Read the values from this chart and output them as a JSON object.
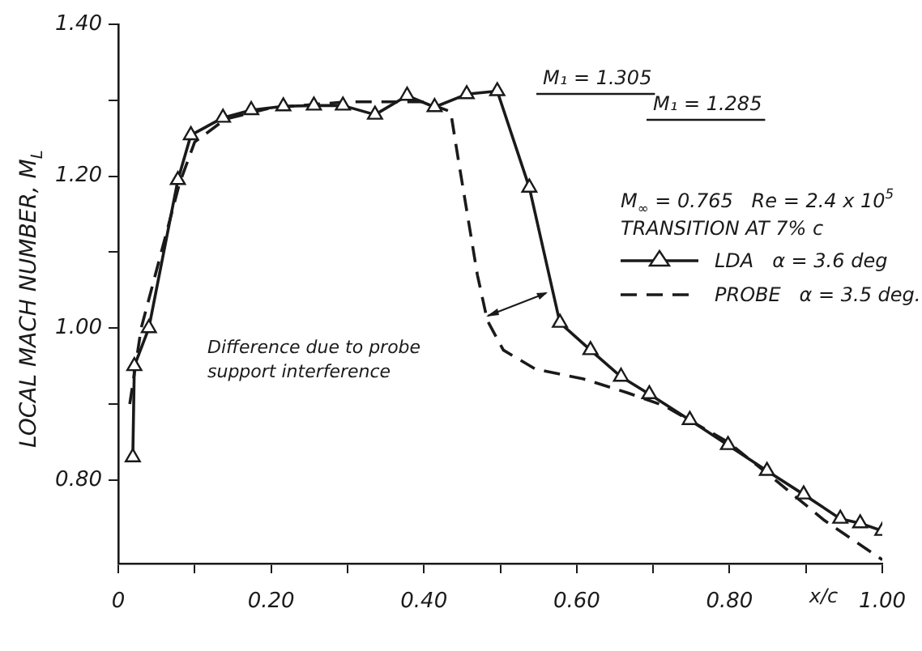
{
  "chart_data": {
    "type": "line",
    "ylabel": "LOCAL MACH NUMBER, M$_{L}$",
    "xlabel": "x/c",
    "xlim": [
      0,
      1
    ],
    "ylim": [
      0.69,
      1.4
    ],
    "xticks": [
      0,
      {
        "value": 0.1,
        "label": null
      },
      {
        "value": 0.2,
        "label": "0.20"
      },
      {
        "value": 0.3,
        "label": null
      },
      {
        "value": 0.4,
        "label": "0.40"
      },
      {
        "value": 0.5,
        "label": null
      },
      {
        "value": 0.6,
        "label": "0.60"
      },
      {
        "value": 0.7,
        "label": null
      },
      {
        "value": 0.8,
        "label": "0.80"
      },
      {
        "value": 0.9,
        "label": null
      },
      {
        "value": 1,
        "label": "1.00"
      }
    ],
    "yticks": [
      {
        "value": 0.8,
        "label": "0.80"
      },
      {
        "value": 0.9,
        "label": null
      },
      {
        "value": 1,
        "label": "1.00"
      },
      {
        "value": 1.1,
        "label": null
      },
      {
        "value": 1.2,
        "label": "1.20"
      },
      {
        "value": 1.3,
        "label": null
      },
      {
        "value": 1.4,
        "label": "1.40"
      }
    ],
    "legend": "right",
    "series": [
      {
        "name": "LDA   α = 3.6 deg",
        "color": "#1a1a1a",
        "marker": "triangle",
        "line_style": "solid",
        "x": [
          0.019,
          0.021,
          0.04,
          0.078,
          0.095,
          0.137,
          0.174,
          0.216,
          0.256,
          0.294,
          0.336,
          0.378,
          0.414,
          0.456,
          0.496,
          0.538,
          0.578,
          0.618,
          0.658,
          0.695,
          0.748,
          0.798,
          0.849,
          0.897,
          0.945,
          0.971,
          1.0
        ],
        "values": [
          0.83,
          0.95,
          1.0,
          1.195,
          1.254,
          1.277,
          1.287,
          1.292,
          1.293,
          1.293,
          1.281,
          1.306,
          1.291,
          1.308,
          1.312,
          1.185,
          1.007,
          0.971,
          0.936,
          0.913,
          0.879,
          0.846,
          0.812,
          0.781,
          0.749,
          0.743,
          0.733
        ]
      },
      {
        "name": "PROBE   α = 3.5 deg.",
        "color": "#1a1a1a",
        "marker": "none",
        "line_style": "dashed",
        "x": [
          0.015,
          0.03,
          0.08,
          0.1,
          0.14,
          0.2,
          0.3,
          0.4,
          0.435,
          0.445,
          0.47,
          0.483,
          0.504,
          0.546,
          0.609,
          0.666,
          0.714,
          0.798,
          0.855,
          0.924,
          1.0
        ],
        "values": [
          0.9,
          1.0,
          1.19,
          1.245,
          1.275,
          1.29,
          1.298,
          1.298,
          1.285,
          1.222,
          1.07,
          1.01,
          0.971,
          0.946,
          0.933,
          0.915,
          0.898,
          0.85,
          0.804,
          0.747,
          0.695
        ]
      }
    ],
    "annotations": [
      "M₁ = 1.305",
      "M₁ = 1.285",
      "M$_{∞}$ = 0.765   Re = 2.4 x 10$^{5}$",
      "TRANSITION AT 7% c",
      "Difference due to probe support interference"
    ]
  }
}
